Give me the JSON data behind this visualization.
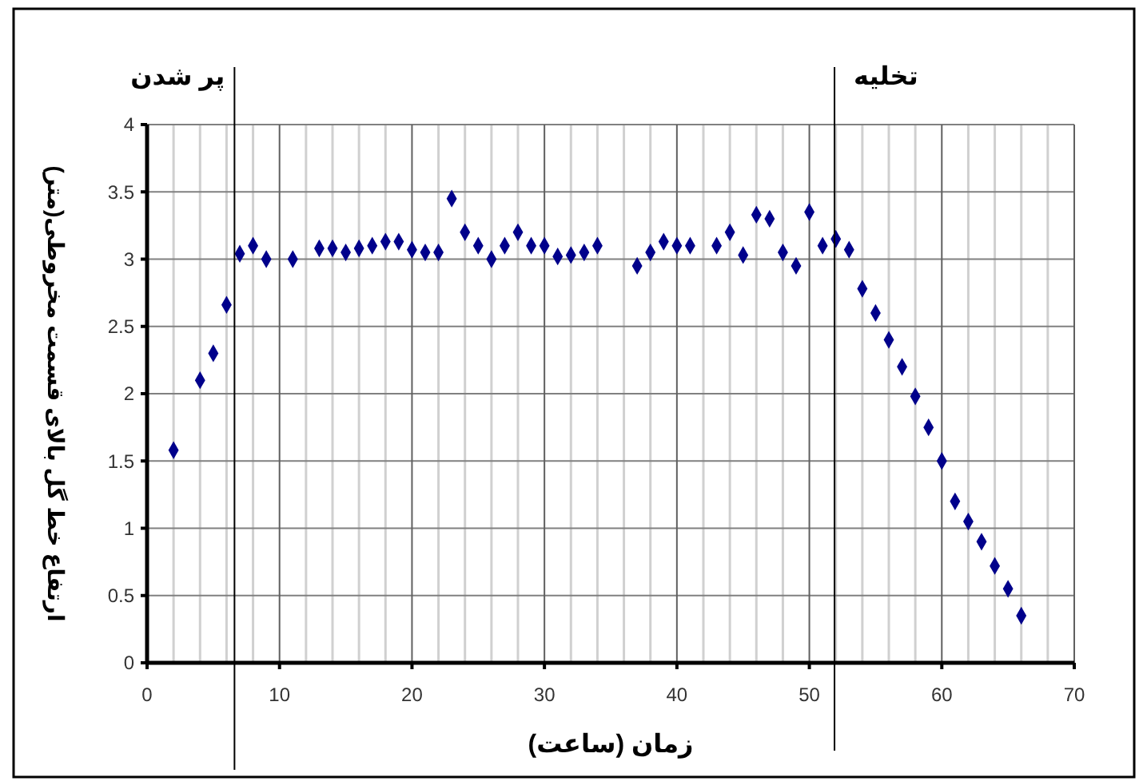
{
  "chart_data": {
    "type": "scatter",
    "xlabel": "زمان (ساعت)",
    "ylabel": "ارتفاع خط گل بالای قسمت مخروطی(متر)",
    "xlim": [
      0,
      70
    ],
    "xticks": [
      0,
      10,
      20,
      30,
      40,
      50,
      60,
      70
    ],
    "ylim": [
      0,
      4
    ],
    "yticks": [
      0,
      0.5,
      1,
      1.5,
      2,
      2.5,
      3,
      3.5,
      4
    ],
    "grid": true,
    "marker": "diamond",
    "ref_lines": [
      {
        "axis": "x",
        "value": 6.6,
        "label": "پر شدن",
        "color": "#000000"
      },
      {
        "axis": "x",
        "value": 51.9,
        "label": "تخلیه",
        "color": "#000000"
      }
    ],
    "series": [
      {
        "color": "#00008b",
        "x": [
          2,
          4,
          5,
          6,
          7,
          8,
          9,
          11,
          13,
          14,
          15,
          16,
          17,
          18,
          19,
          20,
          21,
          22,
          23,
          24,
          25,
          26,
          27,
          28,
          29,
          30,
          31,
          32,
          33,
          34,
          37,
          38,
          39,
          40,
          41,
          43,
          44,
          45,
          46,
          47,
          48,
          49,
          50,
          51,
          52,
          53,
          54,
          55,
          56,
          57,
          58,
          59,
          60,
          61,
          62,
          63,
          64,
          65,
          66
        ],
        "values": [
          1.58,
          2.1,
          2.3,
          2.66,
          3.04,
          3.1,
          3.0,
          3.0,
          3.08,
          3.08,
          3.05,
          3.08,
          3.1,
          3.13,
          3.13,
          3.07,
          3.05,
          3.05,
          3.45,
          3.2,
          3.1,
          3.0,
          3.1,
          3.2,
          3.1,
          3.1,
          3.02,
          3.03,
          3.05,
          3.1,
          2.95,
          3.05,
          3.13,
          3.1,
          3.1,
          3.1,
          3.2,
          3.03,
          3.33,
          3.3,
          3.05,
          2.95,
          3.35,
          3.1,
          3.15,
          3.07,
          2.78,
          2.6,
          2.4,
          2.2,
          1.98,
          1.75,
          1.5,
          1.2,
          1.05,
          0.9,
          0.72,
          0.55,
          0.35
        ]
      }
    ]
  }
}
